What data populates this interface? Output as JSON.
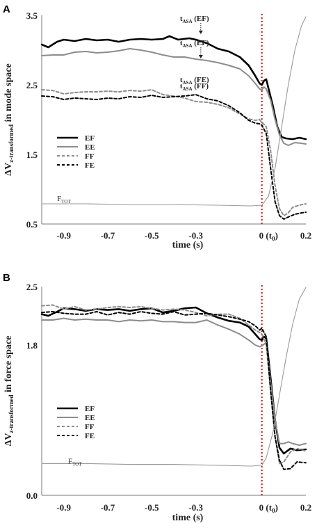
{
  "chart_data": [
    {
      "type": "line",
      "panel": "A",
      "ylabel_main": "ΔV",
      "ylabel_sub": "z-transformed",
      "ylabel_rest": " in mode space",
      "xlabel": "time (s)",
      "xlim": [
        -1.0,
        0.2
      ],
      "ylim": [
        0.5,
        3.5
      ],
      "x_ticks": [
        "-0.9",
        "-0.7",
        "-0.5",
        "-0.3",
        "0 (t",
        "0.2"
      ],
      "x_tick_values": [
        -0.9,
        -0.7,
        -0.5,
        -0.3,
        0.0,
        0.2
      ],
      "y_ticks": [
        "3.5",
        "2.5",
        "1.5",
        "0.5"
      ],
      "y_tick_values": [
        3.5,
        2.5,
        1.5,
        0.5
      ],
      "t0_marker": 0.0,
      "legend": [
        {
          "name": "EF",
          "color": "#000000",
          "dash": "solid",
          "width": 2.6
        },
        {
          "name": "EE",
          "color": "#8c8c8c",
          "dash": "solid",
          "width": 2.0
        },
        {
          "name": "FF",
          "color": "#8c8c8c",
          "dash": "dashed",
          "width": 2.0
        },
        {
          "name": "FE",
          "color": "#000000",
          "dash": "dashed",
          "width": 2.0
        }
      ],
      "legend_position": "middle-left",
      "annotations": [
        {
          "main": "t",
          "sub": "ASA",
          "label": " (EF)",
          "x": -0.29,
          "y": 3.22
        },
        {
          "main": "t",
          "sub": "ASA",
          "label": " (EF)",
          "x": -0.29,
          "y": 2.87
        },
        {
          "main": "t",
          "sub": "ASA",
          "label": " (FE)",
          "x": -0.29,
          "y": 2.34
        },
        {
          "main": "t",
          "sub": "ASA",
          "label": " (FF)",
          "x": -0.29,
          "y": 2.25
        }
      ],
      "ftot_label": {
        "main": "F",
        "sub": "TOT",
        "x": -0.93,
        "y": 0.83
      },
      "series": [
        {
          "name": "EF",
          "x": [
            -1.0,
            -0.97,
            -0.93,
            -0.9,
            -0.85,
            -0.8,
            -0.75,
            -0.7,
            -0.65,
            -0.6,
            -0.55,
            -0.5,
            -0.45,
            -0.42,
            -0.38,
            -0.33,
            -0.3,
            -0.25,
            -0.2,
            -0.15,
            -0.1,
            -0.06,
            -0.03,
            -0.01,
            0.0,
            0.01,
            0.02,
            0.03,
            0.05,
            0.07,
            0.09,
            0.11,
            0.14,
            0.17,
            0.2
          ],
          "y": [
            3.08,
            3.04,
            3.12,
            3.15,
            3.13,
            3.16,
            3.14,
            3.15,
            3.12,
            3.15,
            3.16,
            3.15,
            3.16,
            3.2,
            3.15,
            3.17,
            3.15,
            3.1,
            3.02,
            2.98,
            2.9,
            2.78,
            2.63,
            2.52,
            2.5,
            2.56,
            2.58,
            2.45,
            2.2,
            1.9,
            1.75,
            1.73,
            1.72,
            1.74,
            1.72
          ]
        },
        {
          "name": "EE",
          "x": [
            -1.0,
            -0.95,
            -0.9,
            -0.85,
            -0.8,
            -0.75,
            -0.7,
            -0.65,
            -0.6,
            -0.55,
            -0.5,
            -0.45,
            -0.4,
            -0.35,
            -0.3,
            -0.25,
            -0.2,
            -0.15,
            -0.1,
            -0.06,
            -0.03,
            -0.01,
            0.0,
            0.01,
            0.02,
            0.04,
            0.06,
            0.08,
            0.1,
            0.12,
            0.15,
            0.18,
            0.2
          ],
          "y": [
            2.92,
            2.93,
            2.93,
            2.97,
            2.98,
            2.96,
            2.97,
            2.99,
            3.02,
            3.0,
            2.97,
            2.93,
            2.9,
            2.9,
            2.87,
            2.85,
            2.82,
            2.78,
            2.73,
            2.63,
            2.52,
            2.44,
            2.43,
            2.47,
            2.44,
            2.28,
            2.0,
            1.78,
            1.66,
            1.63,
            1.67,
            1.66,
            1.65
          ]
        },
        {
          "name": "FF",
          "x": [
            -1.0,
            -0.95,
            -0.9,
            -0.85,
            -0.8,
            -0.75,
            -0.7,
            -0.65,
            -0.6,
            -0.55,
            -0.5,
            -0.45,
            -0.4,
            -0.35,
            -0.3,
            -0.25,
            -0.2,
            -0.15,
            -0.1,
            -0.06,
            -0.03,
            -0.01,
            0.0,
            0.02,
            0.04,
            0.06,
            0.08,
            0.1,
            0.12,
            0.14,
            0.17,
            0.2
          ],
          "y": [
            2.43,
            2.42,
            2.37,
            2.39,
            2.4,
            2.4,
            2.41,
            2.4,
            2.42,
            2.41,
            2.43,
            2.36,
            2.34,
            2.31,
            2.26,
            2.25,
            2.22,
            2.17,
            2.08,
            2.01,
            1.99,
            2.0,
            1.96,
            1.9,
            1.55,
            1.05,
            0.72,
            0.62,
            0.66,
            0.74,
            0.77,
            0.79
          ]
        },
        {
          "name": "FE",
          "x": [
            -1.0,
            -0.95,
            -0.9,
            -0.85,
            -0.8,
            -0.75,
            -0.7,
            -0.65,
            -0.6,
            -0.55,
            -0.5,
            -0.45,
            -0.4,
            -0.35,
            -0.3,
            -0.25,
            -0.2,
            -0.15,
            -0.1,
            -0.06,
            -0.03,
            -0.01,
            0.0,
            0.02,
            0.04,
            0.06,
            0.08,
            0.1,
            0.12,
            0.15,
            0.18,
            0.2
          ],
          "y": [
            2.34,
            2.33,
            2.29,
            2.31,
            2.3,
            2.29,
            2.31,
            2.3,
            2.33,
            2.32,
            2.35,
            2.32,
            2.33,
            2.34,
            2.36,
            2.3,
            2.27,
            2.2,
            2.1,
            1.99,
            1.95,
            1.94,
            1.92,
            1.8,
            1.3,
            0.82,
            0.62,
            0.57,
            0.6,
            0.64,
            0.66,
            0.67
          ]
        },
        {
          "name": "FTOT",
          "x": [
            -1.0,
            -0.8,
            -0.6,
            -0.4,
            -0.2,
            -0.05,
            0.0,
            0.03,
            0.06,
            0.09,
            0.12,
            0.15,
            0.18,
            0.2
          ],
          "y": [
            0.79,
            0.79,
            0.78,
            0.78,
            0.77,
            0.76,
            0.77,
            0.9,
            1.3,
            1.9,
            2.5,
            3.0,
            3.35,
            3.48
          ],
          "color": "#9a9a9a",
          "width": 1.1
        }
      ]
    },
    {
      "type": "line",
      "panel": "B",
      "ylabel_main": "ΔV",
      "ylabel_sub": "z-transformed",
      "ylabel_rest": " in force space",
      "xlabel": "time (s)",
      "xlim": [
        -1.0,
        0.2
      ],
      "ylim": [
        0.0,
        2.5
      ],
      "x_ticks": [
        "-0.9",
        "-0.7",
        "-0.5",
        "-0.3",
        "0 (t",
        "0.2"
      ],
      "x_tick_values": [
        -0.9,
        -0.7,
        -0.5,
        -0.3,
        0.0,
        0.2
      ],
      "y_ticks": [
        "2.5",
        "1.8",
        "0.0"
      ],
      "y_tick_values": [
        2.5,
        1.8,
        0.0
      ],
      "t0_marker": 0.0,
      "legend": [
        {
          "name": "EF",
          "color": "#000000",
          "dash": "solid",
          "width": 2.6
        },
        {
          "name": "EE",
          "color": "#8c8c8c",
          "dash": "solid",
          "width": 2.0
        },
        {
          "name": "FF",
          "color": "#8c8c8c",
          "dash": "dashed",
          "width": 2.0
        },
        {
          "name": "FE",
          "color": "#000000",
          "dash": "dashed",
          "width": 2.0
        }
      ],
      "legend_position": "lower-left",
      "ftot_label": {
        "main": "F",
        "sub": "TOT",
        "x": -0.88,
        "y": 0.38
      },
      "series": [
        {
          "name": "EF",
          "x": [
            -1.0,
            -0.97,
            -0.93,
            -0.9,
            -0.85,
            -0.8,
            -0.75,
            -0.7,
            -0.65,
            -0.6,
            -0.55,
            -0.5,
            -0.45,
            -0.4,
            -0.35,
            -0.3,
            -0.25,
            -0.2,
            -0.15,
            -0.1,
            -0.06,
            -0.03,
            -0.01,
            0.0,
            0.01,
            0.02,
            0.04,
            0.06,
            0.08,
            0.1,
            0.13,
            0.16,
            0.2
          ],
          "y": [
            2.17,
            2.15,
            2.2,
            2.24,
            2.23,
            2.21,
            2.23,
            2.22,
            2.23,
            2.21,
            2.23,
            2.24,
            2.19,
            2.21,
            2.24,
            2.25,
            2.18,
            2.13,
            2.09,
            2.07,
            2.02,
            1.93,
            1.87,
            1.86,
            1.9,
            1.88,
            1.4,
            0.9,
            0.57,
            0.5,
            0.56,
            0.54,
            0.55
          ]
        },
        {
          "name": "EE",
          "x": [
            -1.0,
            -0.95,
            -0.9,
            -0.85,
            -0.8,
            -0.75,
            -0.7,
            -0.65,
            -0.6,
            -0.55,
            -0.5,
            -0.45,
            -0.4,
            -0.35,
            -0.3,
            -0.25,
            -0.2,
            -0.15,
            -0.1,
            -0.06,
            -0.03,
            -0.01,
            0.0,
            0.02,
            0.04,
            0.06,
            0.08,
            0.1,
            0.12,
            0.14,
            0.17,
            0.2
          ],
          "y": [
            2.1,
            2.1,
            2.12,
            2.1,
            2.11,
            2.1,
            2.1,
            2.08,
            2.1,
            2.09,
            2.1,
            2.08,
            2.08,
            2.07,
            2.07,
            2.1,
            2.04,
            1.99,
            1.93,
            1.86,
            1.8,
            1.78,
            1.79,
            1.83,
            1.35,
            0.9,
            0.62,
            0.62,
            0.64,
            0.62,
            0.6,
            0.62
          ]
        },
        {
          "name": "FF",
          "x": [
            -1.0,
            -0.95,
            -0.9,
            -0.85,
            -0.8,
            -0.75,
            -0.7,
            -0.65,
            -0.6,
            -0.55,
            -0.5,
            -0.45,
            -0.4,
            -0.35,
            -0.3,
            -0.25,
            -0.2,
            -0.15,
            -0.1,
            -0.06,
            -0.03,
            -0.01,
            0.0,
            0.02,
            0.04,
            0.06,
            0.08,
            0.1,
            0.13,
            0.16,
            0.2
          ],
          "y": [
            2.27,
            2.28,
            2.23,
            2.26,
            2.22,
            2.23,
            2.25,
            2.26,
            2.25,
            2.26,
            2.24,
            2.22,
            2.23,
            2.22,
            2.19,
            2.15,
            2.17,
            2.17,
            2.12,
            2.04,
            1.98,
            1.95,
            1.93,
            1.8,
            1.25,
            0.7,
            0.38,
            0.4,
            0.52,
            0.56,
            0.53
          ]
        },
        {
          "name": "FE",
          "x": [
            -1.0,
            -0.95,
            -0.9,
            -0.85,
            -0.8,
            -0.75,
            -0.7,
            -0.65,
            -0.6,
            -0.55,
            -0.5,
            -0.45,
            -0.4,
            -0.35,
            -0.3,
            -0.25,
            -0.2,
            -0.15,
            -0.1,
            -0.06,
            -0.03,
            -0.01,
            0.0,
            0.02,
            0.04,
            0.06,
            0.08,
            0.1,
            0.13,
            0.16,
            0.2
          ],
          "y": [
            2.19,
            2.2,
            2.18,
            2.17,
            2.17,
            2.2,
            2.16,
            2.19,
            2.17,
            2.2,
            2.18,
            2.17,
            2.2,
            2.16,
            2.17,
            2.18,
            2.16,
            2.14,
            2.11,
            2.08,
            2.03,
            1.98,
            2.0,
            1.9,
            1.25,
            0.7,
            0.42,
            0.31,
            0.32,
            0.4,
            0.39
          ]
        },
        {
          "name": "FTOT",
          "x": [
            -1.0,
            -0.8,
            -0.6,
            -0.4,
            -0.2,
            -0.05,
            0.0,
            0.02,
            0.05,
            0.08,
            0.11,
            0.14,
            0.17,
            0.2
          ],
          "y": [
            0.38,
            0.38,
            0.37,
            0.37,
            0.36,
            0.35,
            0.36,
            0.45,
            0.75,
            1.2,
            1.65,
            2.05,
            2.35,
            2.49
          ],
          "color": "#9a9a9a",
          "width": 1.1
        }
      ]
    }
  ]
}
